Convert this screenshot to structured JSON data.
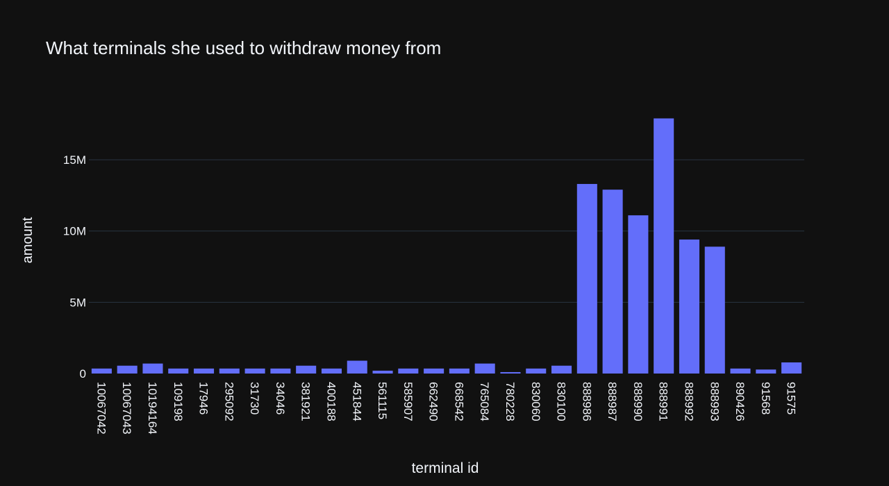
{
  "chart_data": {
    "type": "bar",
    "title": "What terminals she used to withdraw money from",
    "xlabel": "terminal id",
    "ylabel": "amount",
    "categories": [
      "10067042",
      "10067043",
      "10194164",
      "109198",
      "17946",
      "295092",
      "31730",
      "34046",
      "381921",
      "400188",
      "451844",
      "561115",
      "585907",
      "662490",
      "668542",
      "765084",
      "780228",
      "830060",
      "830100",
      "888986",
      "888987",
      "888990",
      "888991",
      "888992",
      "888993",
      "890426",
      "91568",
      "91575"
    ],
    "values": [
      350000,
      550000,
      700000,
      350000,
      350000,
      350000,
      350000,
      350000,
      550000,
      350000,
      900000,
      200000,
      350000,
      350000,
      350000,
      700000,
      100000,
      350000,
      550000,
      13300000,
      12900000,
      11100000,
      17900000,
      9400000,
      8900000,
      350000,
      280000,
      780000
    ],
    "ylim": [
      0,
      18900000
    ],
    "yticks": [
      0,
      5000000,
      10000000,
      15000000
    ],
    "ytick_labels": [
      "0",
      "5M",
      "10M",
      "15M"
    ],
    "grid": true,
    "legend": "none",
    "colors": {
      "background": "#111111",
      "bar": "#636efa",
      "grid": "#283442",
      "text": "#f2f5fa"
    }
  }
}
